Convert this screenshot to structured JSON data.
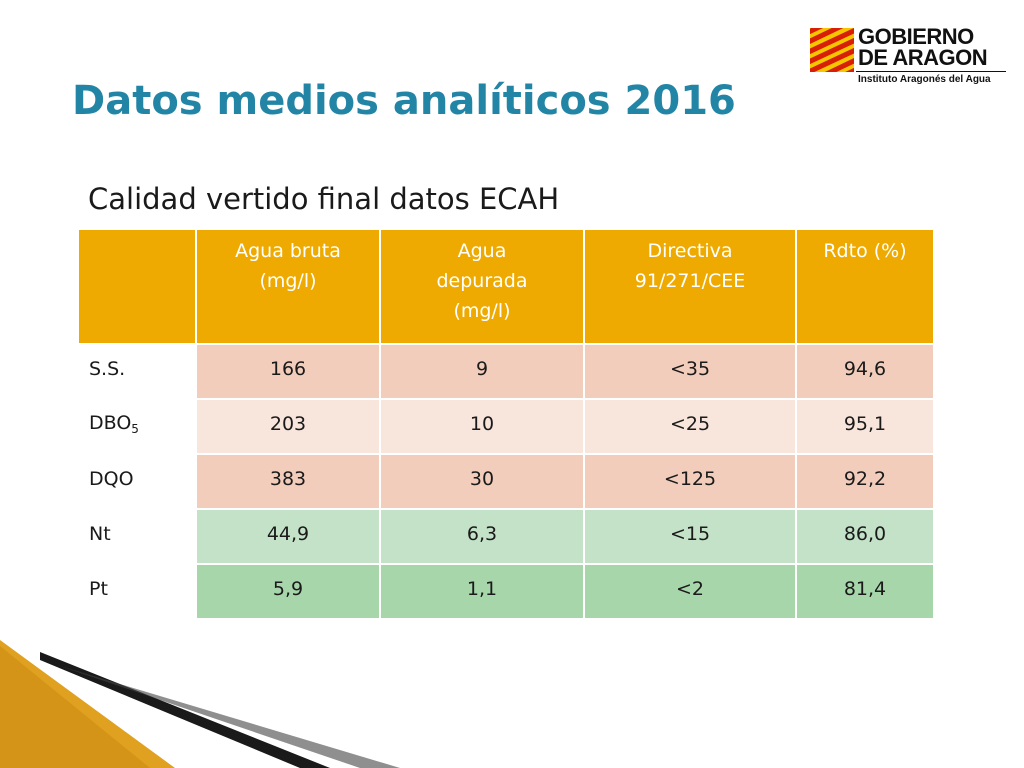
{
  "title": "Datos medios analíticos 2016",
  "subtitle": "Calidad vertido final datos ECAH",
  "logo": {
    "line1": "GOBIERNO",
    "line2": "DE ARAGON",
    "line3": "Instituto Aragonés del Agua"
  },
  "table": {
    "headers": [
      "",
      [
        "Agua bruta",
        "(mg/l)"
      ],
      [
        "Agua",
        "depurada",
        "(mg/l)"
      ],
      [
        "Directiva",
        "91/271/CEE"
      ],
      [
        "Rdto (%)"
      ]
    ],
    "rows": [
      {
        "label": "S.S.",
        "label_sub": "",
        "values": [
          "166",
          "9",
          "<35",
          "94,6"
        ]
      },
      {
        "label": "DBO",
        "label_sub": "5",
        "values": [
          "203",
          "10",
          "<25",
          "95,1"
        ]
      },
      {
        "label": "DQO",
        "label_sub": "",
        "values": [
          "383",
          "30",
          "<125",
          "92,2"
        ]
      },
      {
        "label": "Nt",
        "label_sub": "",
        "values": [
          "44,9",
          "6,3",
          "<15",
          "86,0"
        ]
      },
      {
        "label": "Pt",
        "label_sub": "",
        "values": [
          "5,9",
          "1,1",
          "<2",
          "81,4"
        ]
      }
    ]
  },
  "colors": {
    "title": "#2385a6",
    "header": "#eeaa00",
    "row_salmon": "#f3cdbb",
    "row_salmon_light": "#f8e5dc",
    "row_green": "#c3e2c8",
    "row_green_dark": "#a8d6ab"
  }
}
